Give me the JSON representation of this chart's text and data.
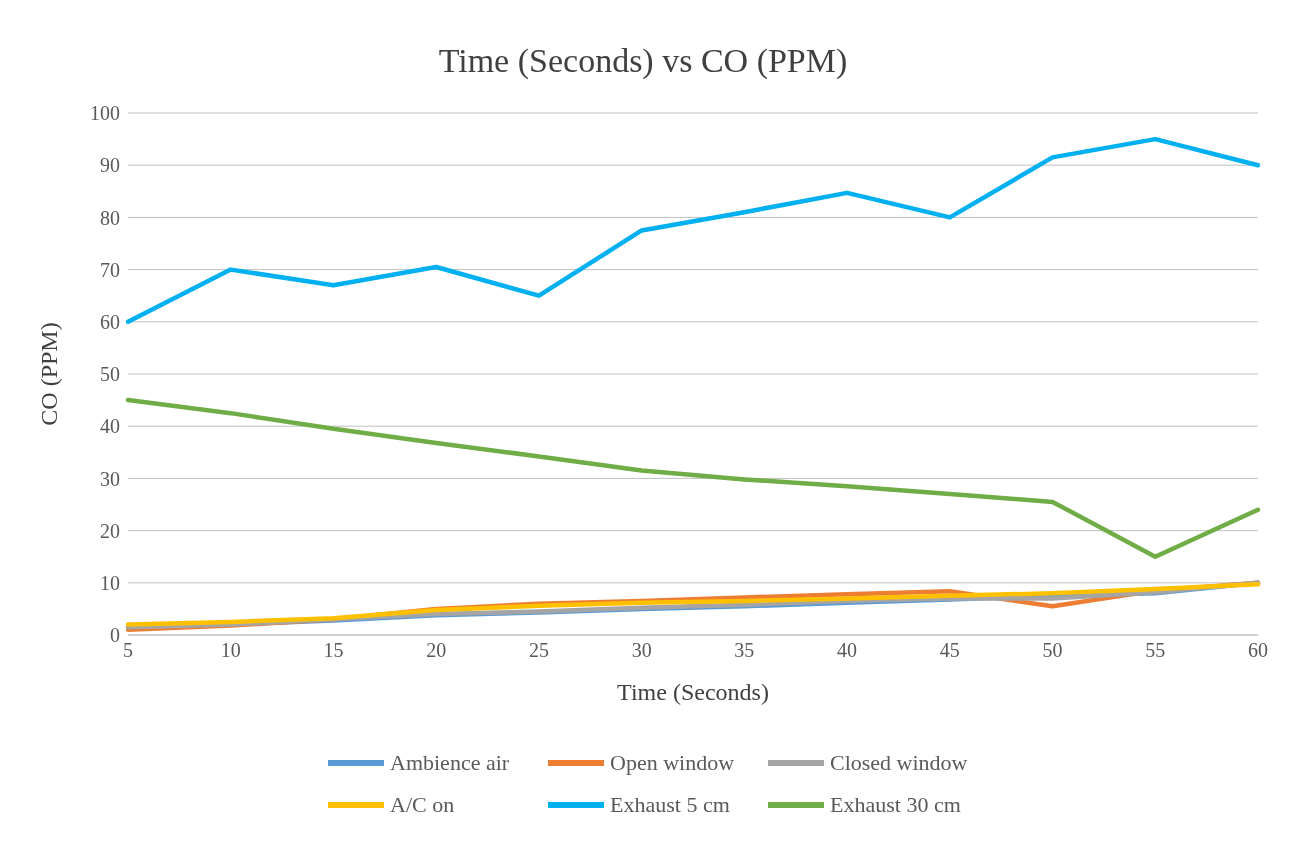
{
  "chart_data": {
    "type": "line",
    "title": "Time (Seconds) vs CO (PPM)",
    "xlabel": "Time (Seconds)",
    "ylabel": "CO (PPM)",
    "categories": [
      "5",
      "10",
      "15",
      "20",
      "25",
      "30",
      "35",
      "40",
      "45",
      "50",
      "55",
      "60"
    ],
    "series": [
      {
        "name": "Ambience air",
        "color": "#5b9bd5",
        "values": [
          1.5,
          2,
          2.8,
          3.8,
          4.3,
          5,
          5.5,
          6.2,
          6.8,
          7.5,
          8,
          10
        ]
      },
      {
        "name": "Open window",
        "color": "#ed7d31",
        "values": [
          1,
          1.8,
          3,
          5,
          6,
          6.5,
          7.2,
          7.8,
          8.4,
          5.5,
          8.5,
          10
        ]
      },
      {
        "name": "Closed window",
        "color": "#a5a5a5",
        "values": [
          1.5,
          2,
          3,
          4,
          4.5,
          5.2,
          5.8,
          6.5,
          7,
          7,
          8.2,
          10
        ]
      },
      {
        "name": "A/C on",
        "color": "#ffc000",
        "values": [
          2,
          2.5,
          3.2,
          4.8,
          5.6,
          6.2,
          6.5,
          7,
          7.5,
          8,
          8.8,
          9.7
        ]
      },
      {
        "name": "Exhaust 5 cm",
        "color": "#00b0f0",
        "values": [
          60,
          70,
          67,
          70.5,
          65,
          77.5,
          81,
          84.7,
          80,
          91.5,
          95,
          90
        ]
      },
      {
        "name": "Exhaust 30 cm",
        "color": "#70ad47",
        "values": [
          45,
          42.5,
          39.5,
          36.8,
          34.2,
          31.5,
          29.8,
          28.5,
          27,
          25.5,
          15,
          24
        ]
      }
    ],
    "ylim": [
      0,
      100
    ],
    "yticks": [
      0,
      10,
      20,
      30,
      40,
      50,
      60,
      70,
      80,
      90,
      100
    ],
    "grid": "y",
    "legend": "bottom",
    "marker": "none",
    "line_style": "solid"
  }
}
